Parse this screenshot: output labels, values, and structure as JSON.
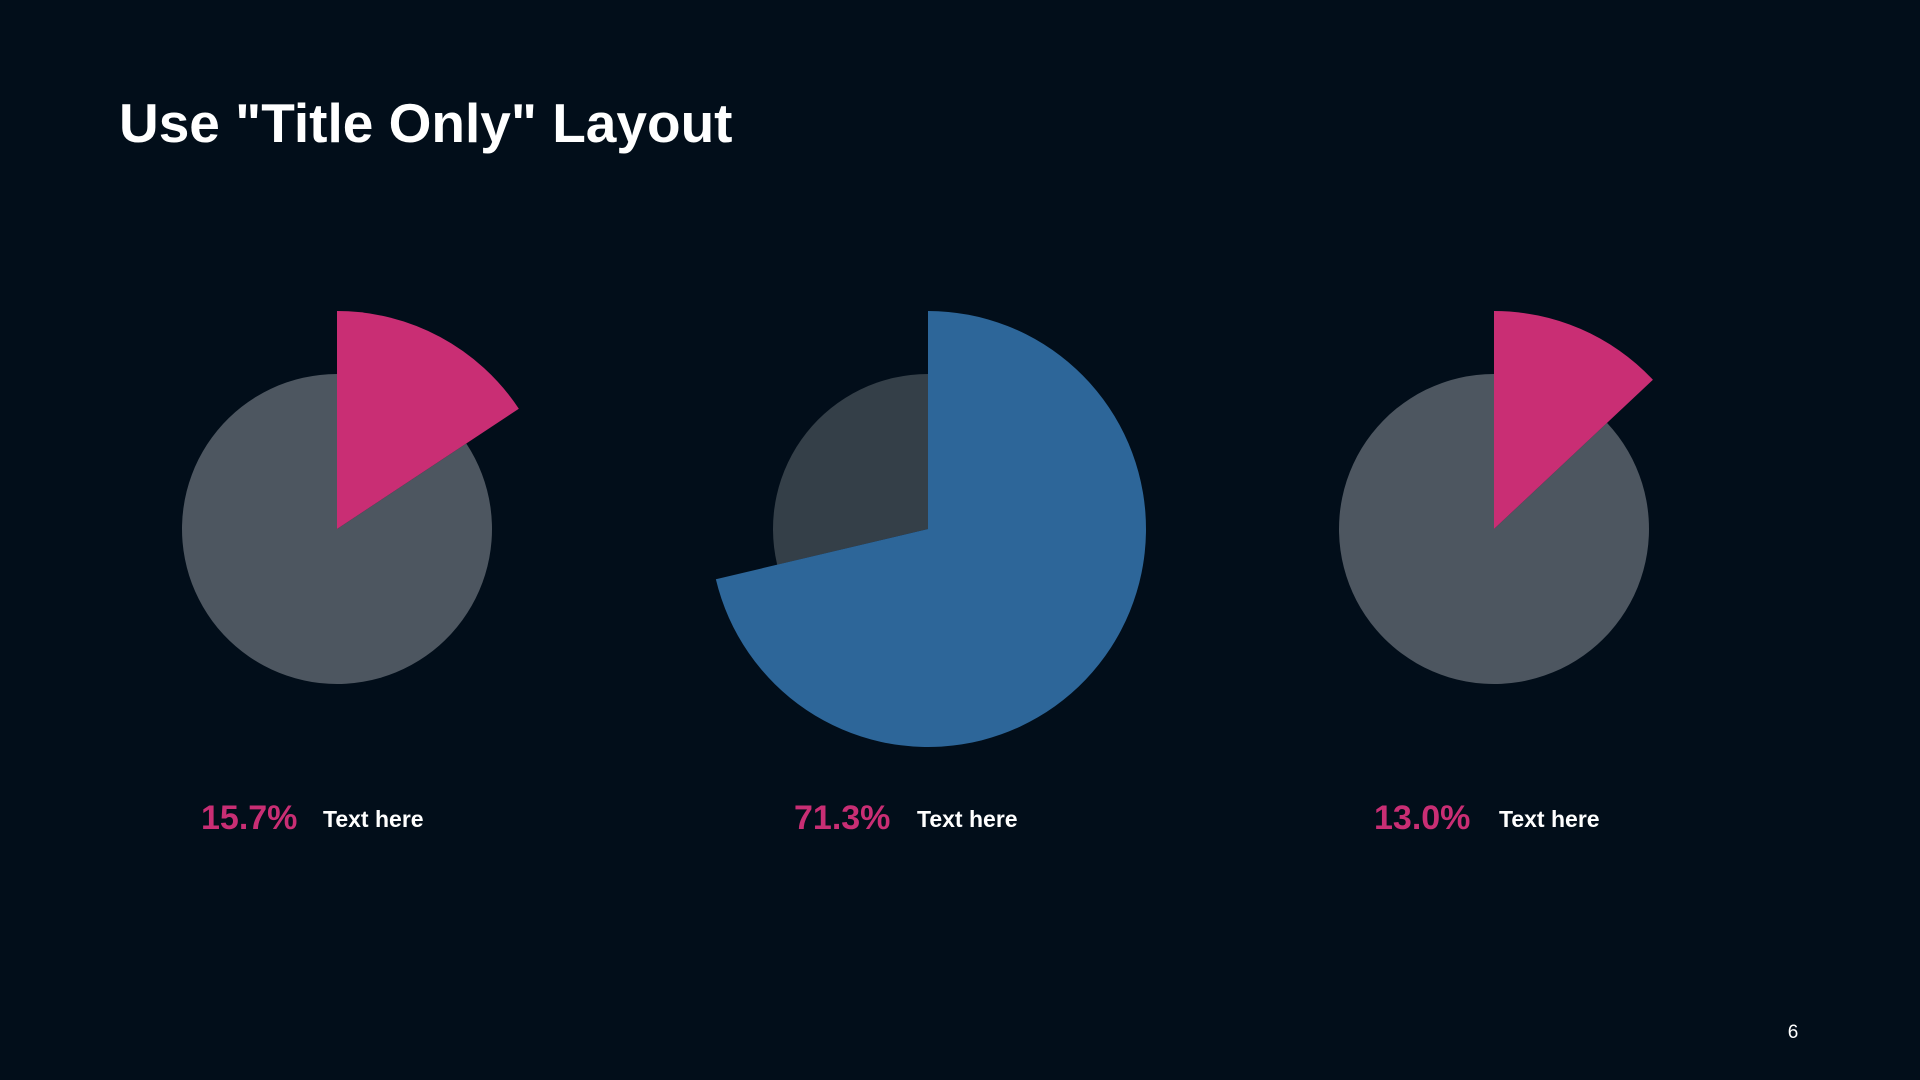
{
  "title": "Use \"Title Only\" Layout",
  "page_number": "6",
  "chart_data": [
    {
      "type": "pie",
      "categories": [
        "Text here",
        null
      ],
      "values": [
        15.7,
        84.3
      ],
      "value_labels": [
        "15.7%",
        null
      ],
      "colors": [
        "#c92e74",
        "#4d5660"
      ]
    },
    {
      "type": "pie",
      "categories": [
        "Text here",
        null
      ],
      "values": [
        71.3,
        28.7
      ],
      "value_labels": [
        "71.3%",
        null
      ],
      "colors": [
        "#2d6699",
        "#343f48"
      ]
    },
    {
      "type": "pie",
      "categories": [
        "Text here",
        null
      ],
      "values": [
        13.0,
        87.0
      ],
      "value_labels": [
        "13.0%",
        null
      ],
      "colors": [
        "#c92e74",
        "#4d5660"
      ]
    }
  ]
}
